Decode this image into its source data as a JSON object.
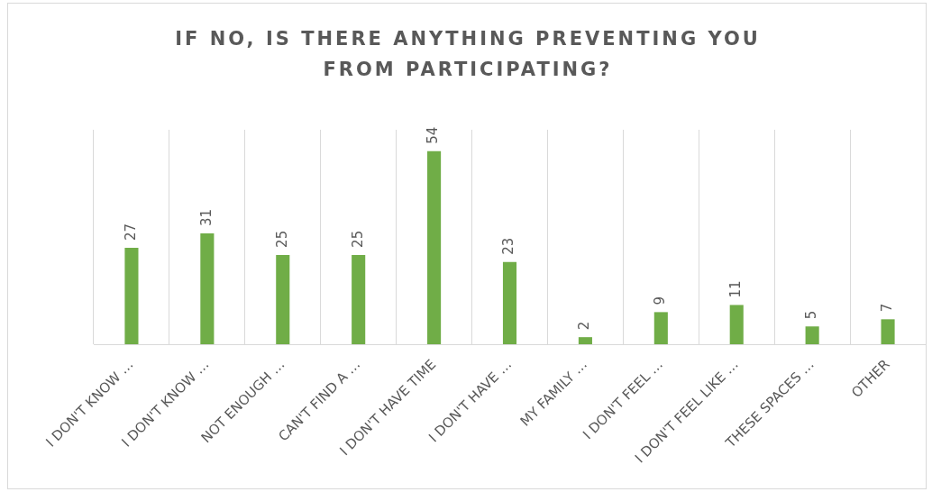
{
  "chart_data": {
    "type": "bar",
    "title": "IF NO, IS THERE ANYTHING PREVENTING YOU FROM PARTICIPATING?",
    "categories": [
      "I DON'T KNOW …",
      "I DON'T KNOW …",
      "NOT ENOUGH …",
      "CAN'T FIND A …",
      "I DON'T HAVE TIME",
      "I DON'T HAVE …",
      "MY FAMILY …",
      "I DON'T FEEL …",
      "I DON'T FEEL LIKE …",
      "THESE SPACES …",
      "OTHER"
    ],
    "values": [
      27,
      31,
      25,
      25,
      54,
      23,
      2,
      9,
      11,
      5,
      7
    ],
    "color": "#70ad47",
    "data_labels": true,
    "grid": "x",
    "legend": false
  }
}
